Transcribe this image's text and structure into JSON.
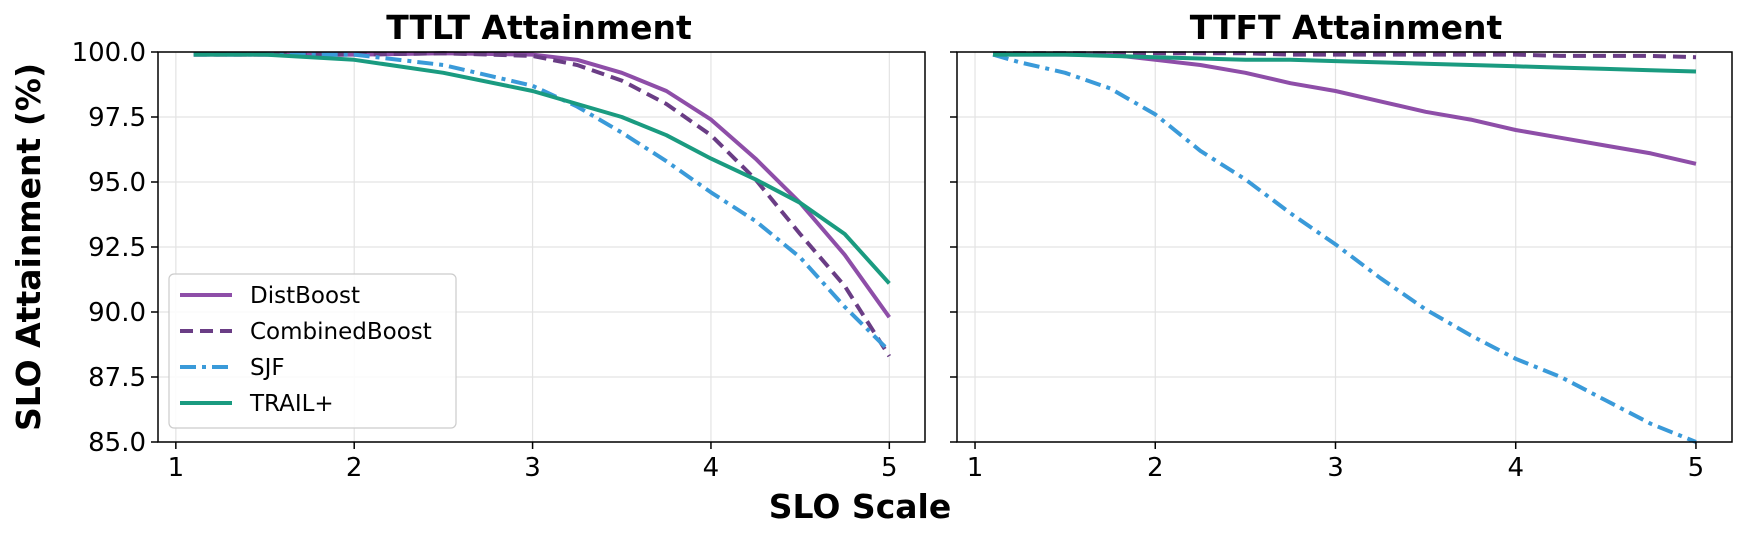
{
  "figure": {
    "ylabel": "SLO Attainment (%)",
    "xlabel": "SLO Scale"
  },
  "legend": {
    "position": "lower-left",
    "entries": [
      "DistBoost",
      "CombinedBoost",
      "SJF",
      "TRAIL+"
    ]
  },
  "series_styles": [
    {
      "name": "DistBoost",
      "color": "#8e4ea8",
      "dash": "solid"
    },
    {
      "name": "CombinedBoost",
      "color": "#6a3d85",
      "dash": "dashed"
    },
    {
      "name": "SJF",
      "color": "#3a9ad9",
      "dash": "dashdot"
    },
    {
      "name": "TRAIL+",
      "color": "#1a9b80",
      "dash": "solid"
    }
  ],
  "chart_data": [
    {
      "type": "line",
      "title": "TTLT Attainment",
      "xlabel": "SLO Scale",
      "ylabel": "SLO Attainment (%)",
      "xlim": [
        0.9,
        5.2
      ],
      "ylim": [
        85.0,
        100.0
      ],
      "xticks": [
        "1",
        "2",
        "3",
        "4",
        "5"
      ],
      "yticks": [
        "85.0",
        "87.5",
        "90.0",
        "92.5",
        "95.0",
        "97.5",
        "100.0"
      ],
      "grid": true,
      "legend": "lower-left",
      "x": [
        1.1,
        1.5,
        2.0,
        2.5,
        3.0,
        3.25,
        3.5,
        3.75,
        4.0,
        4.25,
        4.5,
        4.75,
        5.0
      ],
      "series": [
        {
          "name": "DistBoost",
          "values": [
            99.9,
            99.9,
            99.9,
            99.95,
            99.9,
            99.7,
            99.2,
            98.5,
            97.4,
            95.9,
            94.2,
            92.2,
            89.8
          ]
        },
        {
          "name": "CombinedBoost",
          "values": [
            99.9,
            99.9,
            99.9,
            99.95,
            99.85,
            99.5,
            98.9,
            98.0,
            96.8,
            95.1,
            93.0,
            91.0,
            88.3
          ]
        },
        {
          "name": "SJF",
          "values": [
            99.9,
            99.9,
            99.9,
            99.5,
            98.7,
            97.9,
            96.9,
            95.8,
            94.6,
            93.5,
            92.1,
            90.2,
            88.5
          ]
        },
        {
          "name": "TRAIL+",
          "values": [
            99.9,
            99.9,
            99.7,
            99.2,
            98.5,
            98.0,
            97.5,
            96.8,
            95.9,
            95.1,
            94.2,
            93.0,
            91.1
          ]
        }
      ]
    },
    {
      "type": "line",
      "title": "TTFT Attainment",
      "xlabel": "SLO Scale",
      "ylabel": "",
      "xlim": [
        0.9,
        5.2
      ],
      "ylim": [
        85.0,
        100.0
      ],
      "xticks": [
        "1",
        "2",
        "3",
        "4",
        "5"
      ],
      "yticks": [
        "85.0",
        "87.5",
        "90.0",
        "92.5",
        "95.0",
        "97.5",
        "100.0"
      ],
      "show_ytick_labels": false,
      "grid": true,
      "x": [
        1.1,
        1.25,
        1.5,
        1.75,
        2.0,
        2.25,
        2.5,
        2.75,
        3.0,
        3.25,
        3.5,
        3.75,
        4.0,
        4.25,
        4.5,
        4.75,
        5.0
      ],
      "series": [
        {
          "name": "DistBoost",
          "values": [
            99.9,
            99.9,
            99.9,
            99.9,
            99.7,
            99.5,
            99.2,
            98.8,
            98.5,
            98.1,
            97.7,
            97.4,
            97.0,
            96.7,
            96.4,
            96.1,
            95.7
          ]
        },
        {
          "name": "CombinedBoost",
          "values": [
            99.95,
            99.95,
            99.95,
            99.95,
            99.95,
            99.95,
            99.95,
            99.9,
            99.9,
            99.9,
            99.9,
            99.9,
            99.9,
            99.85,
            99.85,
            99.85,
            99.8
          ]
        },
        {
          "name": "SJF",
          "values": [
            99.9,
            99.6,
            99.2,
            98.6,
            97.6,
            96.2,
            95.1,
            93.8,
            92.6,
            91.3,
            90.1,
            89.1,
            88.2,
            87.5,
            86.6,
            85.7,
            85.0
          ]
        },
        {
          "name": "TRAIL+",
          "values": [
            99.9,
            99.9,
            99.9,
            99.85,
            99.8,
            99.75,
            99.7,
            99.7,
            99.65,
            99.6,
            99.55,
            99.5,
            99.45,
            99.4,
            99.35,
            99.3,
            99.25
          ]
        }
      ]
    }
  ]
}
